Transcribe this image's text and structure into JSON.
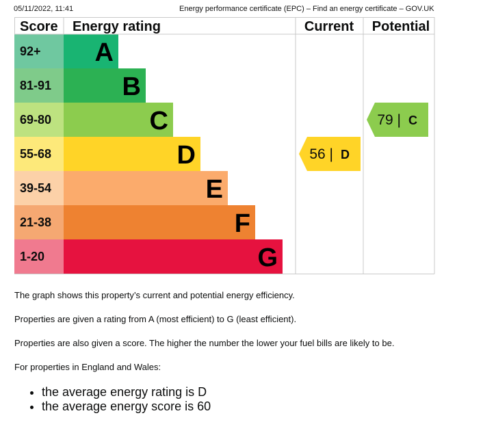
{
  "header": {
    "datetime": "05/11/2022, 11:41",
    "page_title": "Energy performance certificate (EPC) – Find an energy certificate – GOV.UK"
  },
  "chart_data": {
    "type": "bar",
    "columns": {
      "score": "Score",
      "rating": "Energy rating",
      "current": "Current",
      "potential": "Potential"
    },
    "bands": [
      {
        "letter": "A",
        "range": "92+",
        "score_color": "#6fc8a0",
        "color": "#19b472"
      },
      {
        "letter": "B",
        "range": "81-91",
        "score_color": "#7fcb8a",
        "color": "#2cb153"
      },
      {
        "letter": "C",
        "range": "69-80",
        "score_color": "#bde280",
        "color": "#8ccc4e"
      },
      {
        "letter": "D",
        "range": "55-68",
        "score_color": "#fde97a",
        "color": "#ffd427"
      },
      {
        "letter": "E",
        "range": "39-54",
        "score_color": "#fcd1a8",
        "color": "#fbab6c"
      },
      {
        "letter": "F",
        "range": "21-38",
        "score_color": "#f5a872",
        "color": "#ee8231"
      },
      {
        "letter": "G",
        "range": "1-20",
        "score_color": "#f07a8f",
        "color": "#e6123f"
      }
    ],
    "current": {
      "score": 56,
      "band": "D",
      "color": "#ffd427"
    },
    "potential": {
      "score": 79,
      "band": "C",
      "color": "#8ccc4e"
    },
    "grid_color": "#c9c9c9"
  },
  "text": {
    "p1": "The graph shows this property’s current and potential energy efficiency.",
    "p2": "Properties are given a rating from A (most efficient) to G (least efficient).",
    "p3": "Properties are also given a score. The higher the number the lower your fuel bills are likely to be.",
    "p4": "For properties in England and Wales:",
    "bullets": [
      "the average energy rating is D",
      "the average energy score is 60"
    ]
  }
}
